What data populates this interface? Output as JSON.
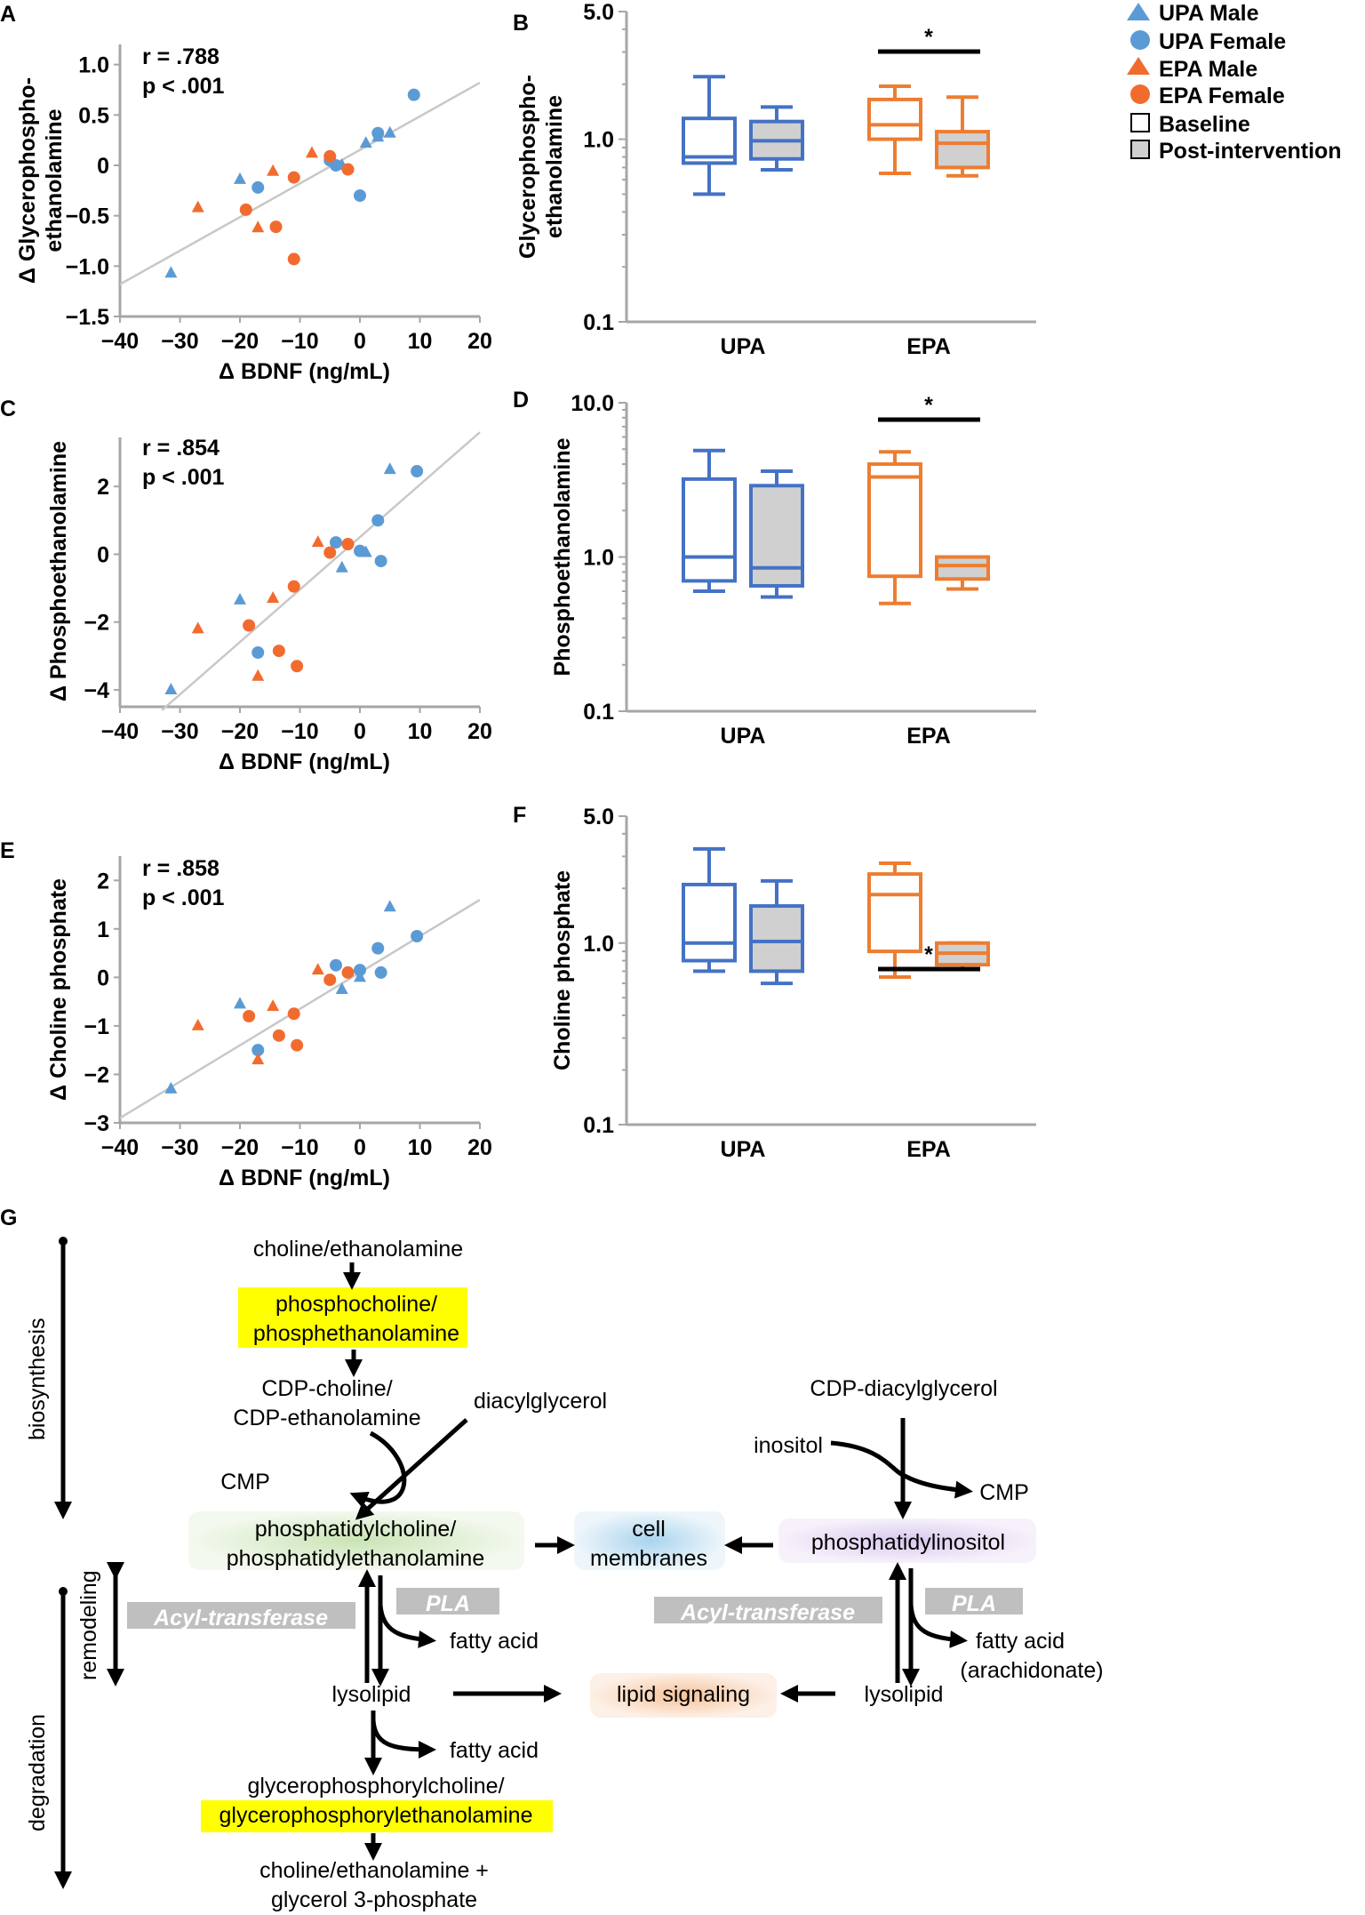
{
  "colors": {
    "upa": "#4472c4",
    "upa_marker": "#5b9bd5",
    "epa": "#ed7d31",
    "epa_marker": "#f26b2e",
    "post_fill": "#d0d0d0",
    "highlight": "#ffff00",
    "axis": "#a6a6a6"
  },
  "legend": {
    "items": [
      {
        "label": "UPA Male",
        "marker": "triangle-icon",
        "color": "#5b9bd5"
      },
      {
        "label": "UPA Female",
        "marker": "circle-icon",
        "color": "#5b9bd5"
      },
      {
        "label": "EPA Male",
        "marker": "triangle-icon",
        "color": "#f26b2e"
      },
      {
        "label": "EPA Female",
        "marker": "circle-icon",
        "color": "#f26b2e"
      },
      {
        "label": "Baseline",
        "marker": "white-square-icon",
        "color": "#ffffff"
      },
      {
        "label": "Post-intervention",
        "marker": "gray-square-icon",
        "color": "#d0d0d0"
      }
    ]
  },
  "chart_data": [
    {
      "panel": "A",
      "type": "scatter",
      "xlabel": "Δ BDNF (ng/mL)",
      "ylabel": "Δ Glycerophospho-\nethanolamine",
      "xlim": [
        -40,
        20
      ],
      "ylim": [
        -1.5,
        1.2
      ],
      "xticks": [
        "−40",
        "−30",
        "−20",
        "−10",
        "0",
        "10",
        "20"
      ],
      "yticks": [
        "1.0",
        "0.5",
        "0",
        "−0.5",
        "−1.0",
        "−1.5"
      ],
      "annotation": [
        "r = .788",
        "p < .001"
      ],
      "fit": [
        [
          -40,
          -1.18
        ],
        [
          20,
          0.82
        ]
      ],
      "series": [
        {
          "name": "UPA Male",
          "points": [
            [
              -31.5,
              -1.07
            ],
            [
              -20,
              -0.14
            ],
            [
              -3,
              0.0
            ],
            [
              1,
              0.22
            ],
            [
              3,
              0.28
            ],
            [
              5,
              0.32
            ]
          ]
        },
        {
          "name": "UPA Female",
          "points": [
            [
              -17,
              -0.22
            ],
            [
              -5,
              0.05
            ],
            [
              -4,
              0.0
            ],
            [
              0,
              -0.3
            ],
            [
              3,
              0.32
            ],
            [
              9,
              0.7
            ]
          ]
        },
        {
          "name": "EPA Male",
          "points": [
            [
              -27,
              -0.42
            ],
            [
              -14.5,
              -0.06
            ],
            [
              -17,
              -0.62
            ],
            [
              -8,
              0.12
            ]
          ]
        },
        {
          "name": "EPA Female",
          "points": [
            [
              -19,
              -0.44
            ],
            [
              -14,
              -0.61
            ],
            [
              -11,
              -0.12
            ],
            [
              -11,
              -0.93
            ],
            [
              -5,
              0.09
            ],
            [
              -2,
              -0.04
            ]
          ]
        }
      ]
    },
    {
      "panel": "B",
      "type": "box",
      "scale": "log",
      "ylabel": "Glycerophospho-\nethanolamine",
      "ylim": [
        0.1,
        5.0
      ],
      "yticks": [
        "5.0",
        "1.0",
        "0.1"
      ],
      "categories": [
        "UPA",
        "EPA"
      ],
      "significance": "*",
      "boxes": [
        {
          "group": "UPA",
          "phase": "Baseline",
          "min": 0.5,
          "q1": 0.74,
          "median": 0.8,
          "q3": 1.3,
          "max": 2.2
        },
        {
          "group": "UPA",
          "phase": "Post-intervention",
          "min": 0.68,
          "q1": 0.78,
          "median": 0.98,
          "q3": 1.25,
          "max": 1.5
        },
        {
          "group": "EPA",
          "phase": "Baseline",
          "min": 0.65,
          "q1": 1.0,
          "median": 1.2,
          "q3": 1.65,
          "max": 1.95
        },
        {
          "group": "EPA",
          "phase": "Post-intervention",
          "min": 0.63,
          "q1": 0.7,
          "median": 0.95,
          "q3": 1.1,
          "max": 1.7
        }
      ]
    },
    {
      "panel": "C",
      "type": "scatter",
      "xlabel": "Δ BDNF (ng/mL)",
      "ylabel": "Δ Phosphoethanolamine",
      "xlim": [
        -40,
        20
      ],
      "ylim": [
        -4.5,
        3.5
      ],
      "xticks": [
        "−40",
        "−30",
        "−20",
        "−10",
        "0",
        "10",
        "20"
      ],
      "yticks": [
        "2",
        "0",
        "−2",
        "−4"
      ],
      "annotation": [
        "r = .854",
        "p < .001"
      ],
      "fit": [
        [
          -33,
          -4.6
        ],
        [
          20,
          3.6
        ]
      ],
      "series": [
        {
          "name": "UPA Male",
          "points": [
            [
              -31.5,
              -4.0
            ],
            [
              -20,
              -1.35
            ],
            [
              -3,
              -0.4
            ],
            [
              1,
              0.05
            ],
            [
              5,
              2.5
            ]
          ]
        },
        {
          "name": "UPA Female",
          "points": [
            [
              -17,
              -2.9
            ],
            [
              -4,
              0.35
            ],
            [
              0,
              0.1
            ],
            [
              3,
              1.0
            ],
            [
              3.5,
              -0.2
            ],
            [
              9.5,
              2.45
            ]
          ]
        },
        {
          "name": "EPA Male",
          "points": [
            [
              -27,
              -2.2
            ],
            [
              -14.5,
              -1.3
            ],
            [
              -17,
              -3.6
            ],
            [
              -7,
              0.35
            ]
          ]
        },
        {
          "name": "EPA Female",
          "points": [
            [
              -18.5,
              -2.1
            ],
            [
              -13.5,
              -2.85
            ],
            [
              -11,
              -0.95
            ],
            [
              -10.5,
              -3.3
            ],
            [
              -5,
              0.05
            ],
            [
              -2,
              0.3
            ]
          ]
        }
      ]
    },
    {
      "panel": "D",
      "type": "box",
      "scale": "log",
      "ylabel": "Phosphoethanolamine",
      "ylim": [
        0.1,
        10.0
      ],
      "yticks": [
        "10.0",
        "1.0",
        "0.1"
      ],
      "categories": [
        "UPA",
        "EPA"
      ],
      "significance": "*",
      "boxes": [
        {
          "group": "UPA",
          "phase": "Baseline",
          "min": 0.6,
          "q1": 0.7,
          "median": 1.0,
          "q3": 3.2,
          "max": 4.9
        },
        {
          "group": "UPA",
          "phase": "Post-intervention",
          "min": 0.55,
          "q1": 0.65,
          "median": 0.85,
          "q3": 2.9,
          "max": 3.6
        },
        {
          "group": "EPA",
          "phase": "Baseline",
          "min": 0.5,
          "q1": 0.75,
          "median": 3.3,
          "q3": 4.0,
          "max": 4.8
        },
        {
          "group": "EPA",
          "phase": "Post-intervention",
          "min": 0.62,
          "q1": 0.72,
          "median": 0.88,
          "q3": 1.0,
          "max": 1.0
        }
      ]
    },
    {
      "panel": "E",
      "type": "scatter",
      "xlabel": "Δ BDNF (ng/mL)",
      "ylabel": "Δ Choline phosphate",
      "xlim": [
        -40,
        20
      ],
      "ylim": [
        -3,
        2.5
      ],
      "xticks": [
        "−40",
        "−30",
        "−20",
        "−10",
        "0",
        "10",
        "20"
      ],
      "yticks": [
        "2",
        "1",
        "0",
        "−1",
        "−2",
        "−3"
      ],
      "annotation": [
        "r = .858",
        "p < .001"
      ],
      "fit": [
        [
          -40,
          -2.9
        ],
        [
          20,
          1.6
        ]
      ],
      "series": [
        {
          "name": "UPA Male",
          "points": [
            [
              -31.5,
              -2.3
            ],
            [
              -20,
              -0.55
            ],
            [
              -3,
              -0.25
            ],
            [
              0,
              0.0
            ],
            [
              5,
              1.45
            ]
          ]
        },
        {
          "name": "UPA Female",
          "points": [
            [
              -17,
              -1.5
            ],
            [
              -4,
              0.25
            ],
            [
              0,
              0.15
            ],
            [
              3,
              0.6
            ],
            [
              3.5,
              0.1
            ],
            [
              9.5,
              0.85
            ]
          ]
        },
        {
          "name": "EPA Male",
          "points": [
            [
              -27,
              -1.0
            ],
            [
              -14.5,
              -0.6
            ],
            [
              -17,
              -1.7
            ],
            [
              -7,
              0.15
            ]
          ]
        },
        {
          "name": "EPA Female",
          "points": [
            [
              -18.5,
              -0.8
            ],
            [
              -13.5,
              -1.2
            ],
            [
              -11,
              -0.75
            ],
            [
              -10.5,
              -1.4
            ],
            [
              -5,
              -0.05
            ],
            [
              -2,
              0.1
            ]
          ]
        }
      ]
    },
    {
      "panel": "F",
      "type": "box",
      "scale": "log",
      "ylabel": "Choline phosphate",
      "ylim": [
        0.1,
        5.0
      ],
      "yticks": [
        "5.0",
        "1.0",
        "0.1"
      ],
      "categories": [
        "UPA",
        "EPA"
      ],
      "significance": "*",
      "boxes": [
        {
          "group": "UPA",
          "phase": "Baseline",
          "min": 0.7,
          "q1": 0.8,
          "median": 1.0,
          "q3": 2.1,
          "max": 3.3
        },
        {
          "group": "UPA",
          "phase": "Post-intervention",
          "min": 0.6,
          "q1": 0.7,
          "median": 1.02,
          "q3": 1.6,
          "max": 2.2
        },
        {
          "group": "EPA",
          "phase": "Baseline",
          "min": 0.65,
          "q1": 0.9,
          "median": 1.85,
          "q3": 2.4,
          "max": 2.75
        },
        {
          "group": "EPA",
          "phase": "Post-intervention",
          "min": 0.72,
          "q1": 0.76,
          "median": 0.88,
          "q3": 1.0,
          "max": 1.0
        }
      ]
    }
  ],
  "panel_labels": [
    "A",
    "B",
    "C",
    "D",
    "E",
    "F",
    "G"
  ],
  "diagram": {
    "side": {
      "biosynthesis": "biosynthesis",
      "degradation": "degradation",
      "remodeling": "remodeling"
    },
    "nodes": {
      "choline_top": "choline/ethanolamine",
      "phospho_1": "phosphocholine/",
      "phospho_2": "phosphethanolamine",
      "cdp_1": "CDP-choline/",
      "cdp_2": "CDP-ethanolamine",
      "dag": "diacylglycerol",
      "cmp_left": "CMP",
      "pc_1": "phosphatidylcholine/",
      "pc_2": "phosphatidylethanolamine",
      "cell_1": "cell",
      "cell_2": "membranes",
      "cdp_dag": "CDP-diacylglycerol",
      "inositol": "inositol",
      "cmp_right": "CMP",
      "pi": "phosphatidylinositol",
      "acyl_left": "Acyl-transferase",
      "pla_left": "PLA",
      "fatty_left": "fatty acid",
      "acyl_right": "Acyl-transferase",
      "pla_right": "PLA",
      "fatty_right_1": "fatty acid",
      "fatty_right_2": "(arachidonate)",
      "lyso_left": "lysolipid",
      "lipid_signal": "lipid signaling",
      "lyso_right": "lysolipid",
      "fatty_bottom": "fatty acid",
      "gpc_1": "glycerophosphorylcholine/",
      "gpc_2": "glycerophosphorylethanolamine",
      "end_1": "choline/ethanolamine +",
      "end_2": "glycerol 3-phosphate"
    }
  }
}
